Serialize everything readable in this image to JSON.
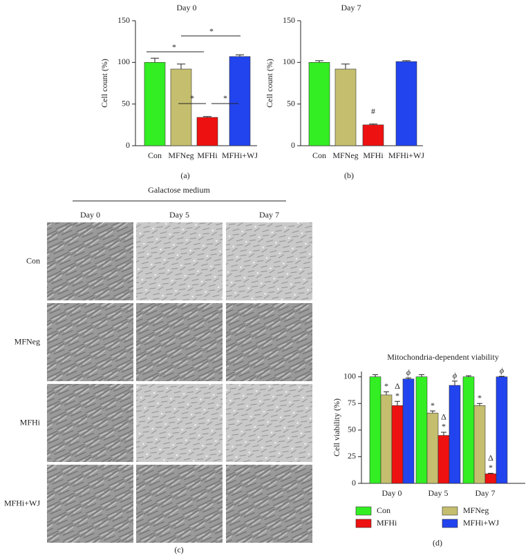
{
  "chart_data": [
    {
      "type": "bar",
      "title": "Day 0",
      "ylabel": "Cell count (%)",
      "caption": "(a)",
      "categories": [
        "Con",
        "MFNeg",
        "MFHi",
        "MFHi+WJ"
      ],
      "values": [
        100,
        92,
        34,
        107
      ],
      "errors": [
        5,
        6,
        1,
        2
      ],
      "colors": [
        "#33ee22",
        "#c4be6e",
        "#ee1111",
        "#2244ee"
      ],
      "ylim": [
        0,
        150
      ],
      "yticks": [
        0,
        50,
        100,
        150
      ],
      "annotations": [
        "*",
        "*",
        "*",
        "*"
      ]
    },
    {
      "type": "bar",
      "title": "Day 7",
      "ylabel": "Cell count (%)",
      "caption": "(b)",
      "categories": [
        "Con",
        "MFNeg",
        "MFHi",
        "MFHi+WJ"
      ],
      "values": [
        100,
        92,
        25,
        101
      ],
      "errors": [
        2,
        6,
        1,
        1
      ],
      "colors": [
        "#33ee22",
        "#c4be6e",
        "#ee1111",
        "#2244ee"
      ],
      "ylim": [
        0,
        150
      ],
      "yticks": [
        0,
        50,
        100,
        150
      ],
      "annotations": [
        "#"
      ]
    },
    {
      "type": "grouped_bar",
      "title": "Mitochondria-dependent viability",
      "ylabel": "Cell viability (%)",
      "caption": "(d)",
      "categories": [
        "Day 0",
        "Day 5",
        "Day 7"
      ],
      "series": [
        {
          "name": "Con",
          "color": "#33ee22",
          "values": [
            100,
            100,
            100
          ],
          "errors": [
            2,
            2,
            1
          ]
        },
        {
          "name": "MFNeg",
          "color": "#c4be6e",
          "values": [
            83,
            66,
            73
          ],
          "errors": [
            3,
            2,
            2
          ]
        },
        {
          "name": "MFHi",
          "color": "#ee1111",
          "values": [
            73,
            45,
            9
          ],
          "errors": [
            4,
            3,
            0.5
          ]
        },
        {
          "name": "MFHi+WJ",
          "color": "#2244ee",
          "values": [
            98,
            92,
            100
          ],
          "errors": [
            1,
            4,
            0.5
          ]
        }
      ],
      "ylim": [
        0,
        105
      ],
      "yticks": [
        0,
        25,
        50,
        75,
        100
      ],
      "annotations": [
        "*",
        "Δ",
        "*",
        "ϕ",
        "*",
        "Δ",
        "*",
        "ϕ",
        "*",
        "Δ",
        "*",
        "ϕ"
      ]
    }
  ],
  "micrographs": {
    "title": "Galactose medium",
    "columns": [
      "Day 0",
      "Day 5",
      "Day 7"
    ],
    "rows": [
      "Con",
      "MFNeg",
      "MFHi",
      "MFHi+WJ"
    ],
    "caption": "(c)"
  }
}
